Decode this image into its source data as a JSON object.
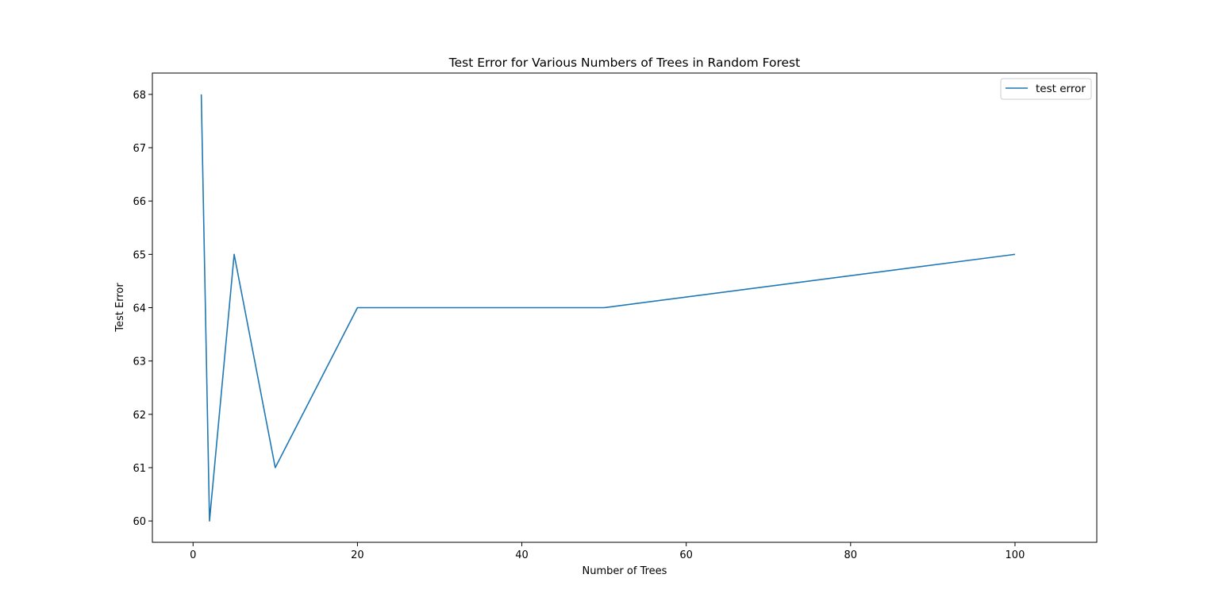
{
  "chart_data": {
    "type": "line",
    "title": "Test Error for Various Numbers of Trees in Random Forest",
    "xlabel": "Number of Trees",
    "ylabel": "Test Error",
    "xlim": [
      -4.95,
      109.95
    ],
    "ylim": [
      59.6,
      68.4
    ],
    "xticks": [
      0,
      20,
      40,
      60,
      80,
      100
    ],
    "yticks": [
      60,
      61,
      62,
      63,
      64,
      65,
      66,
      67,
      68
    ],
    "grid": false,
    "legend_position": "upper-right",
    "series": [
      {
        "name": "test error",
        "color": "#1f77b4",
        "x": [
          1,
          2,
          5,
          10,
          20,
          50,
          100
        ],
        "y": [
          68,
          60,
          65,
          61,
          64,
          64,
          65
        ]
      }
    ]
  }
}
